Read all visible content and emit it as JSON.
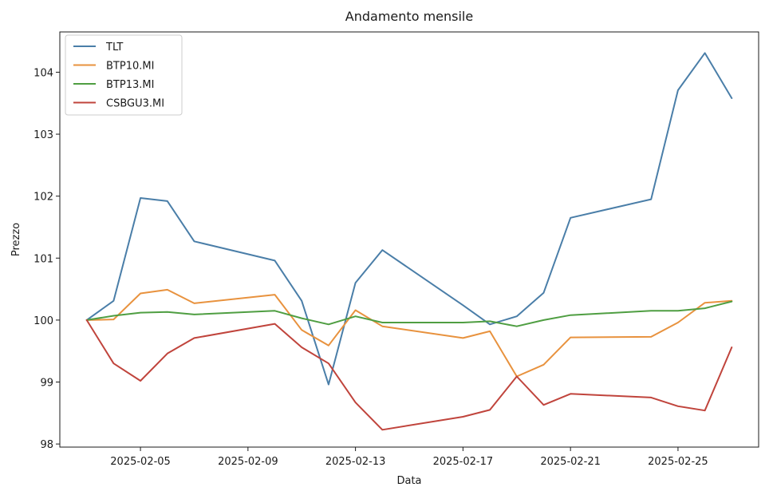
{
  "chart_data": {
    "type": "line",
    "title": "Andamento mensile",
    "xlabel": "Data",
    "ylabel": "Prezzo",
    "x": [
      "2025-02-03",
      "2025-02-04",
      "2025-02-05",
      "2025-02-06",
      "2025-02-07",
      "2025-02-10",
      "2025-02-11",
      "2025-02-12",
      "2025-02-13",
      "2025-02-14",
      "2025-02-17",
      "2025-02-18",
      "2025-02-19",
      "2025-02-20",
      "2025-02-21",
      "2025-02-24",
      "2025-02-25",
      "2025-02-26",
      "2025-02-27"
    ],
    "x_ticks": [
      "2025-02-05",
      "2025-02-09",
      "2025-02-13",
      "2025-02-17",
      "2025-02-21",
      "2025-02-25"
    ],
    "y_ticks": [
      98,
      99,
      100,
      101,
      102,
      103,
      104
    ],
    "xlim": [
      "2025-02-02",
      "2025-02-28"
    ],
    "ylim": [
      97.95,
      104.65
    ],
    "grid": false,
    "legend_position": "top-left",
    "series": [
      {
        "name": "TLT",
        "color": "#4a7ea8",
        "values": [
          100.0,
          100.31,
          101.97,
          101.92,
          101.27,
          100.96,
          100.31,
          98.96,
          100.6,
          101.13,
          100.24,
          99.93,
          100.06,
          100.44,
          101.65,
          101.95,
          103.71,
          104.31,
          103.58
        ]
      },
      {
        "name": "BTP10.MI",
        "color": "#e8923e",
        "values": [
          100.0,
          100.01,
          100.43,
          100.49,
          100.27,
          100.41,
          99.84,
          99.59,
          100.16,
          99.9,
          99.71,
          99.82,
          99.09,
          99.28,
          99.72,
          99.73,
          99.96,
          100.28,
          100.31
        ]
      },
      {
        "name": "BTP13.MI",
        "color": "#4f9e42",
        "values": [
          100.0,
          100.07,
          100.12,
          100.13,
          100.09,
          100.15,
          100.03,
          99.93,
          100.06,
          99.96,
          99.96,
          99.98,
          99.9,
          100.0,
          100.08,
          100.15,
          100.15,
          100.19,
          100.3
        ]
      },
      {
        "name": "CSBGU3.MI",
        "color": "#c0443c",
        "values": [
          100.0,
          99.3,
          99.02,
          99.46,
          99.71,
          99.94,
          99.56,
          99.3,
          98.67,
          98.23,
          98.44,
          98.55,
          99.09,
          98.63,
          98.81,
          98.75,
          98.61,
          98.54,
          99.56
        ]
      }
    ]
  }
}
